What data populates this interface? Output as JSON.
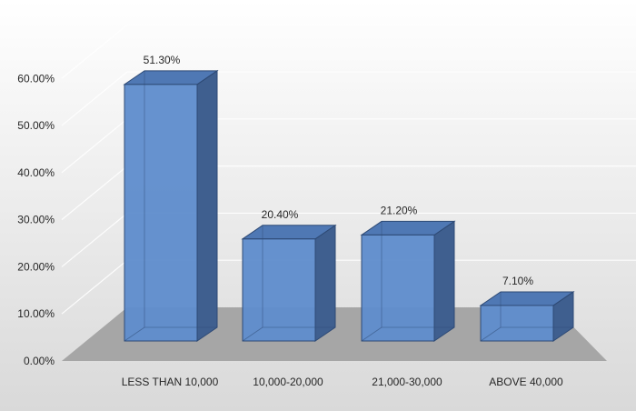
{
  "chart_data": {
    "type": "bar",
    "style": "3d-column",
    "categories": [
      "LESS THAN 10,000",
      "10,000-20,000",
      "21,000-30,000",
      "ABOVE 40,000"
    ],
    "values": [
      51.3,
      20.4,
      21.2,
      7.1
    ],
    "data_labels": [
      "51.30%",
      "20.40%",
      "21.20%",
      "7.10%"
    ],
    "y_ticks": [
      0,
      10,
      20,
      30,
      40,
      50,
      60
    ],
    "y_tick_labels": [
      "0.00%",
      "10.00%",
      "20.00%",
      "30.00%",
      "40.00%",
      "50.00%",
      "60.00%"
    ],
    "ylim": [
      0,
      60
    ],
    "grid": true,
    "legend": "none",
    "colors": {
      "bar_front": "#5e8ccc",
      "bar_side": "#3f5f8f",
      "bar_top": "#4f78b4",
      "bar_edge": "#2e4a75",
      "floor": "#a6a6a6",
      "gridline": "#ffffff",
      "background_top": "#ffffff",
      "background_bottom": "#d9d9d9"
    }
  }
}
